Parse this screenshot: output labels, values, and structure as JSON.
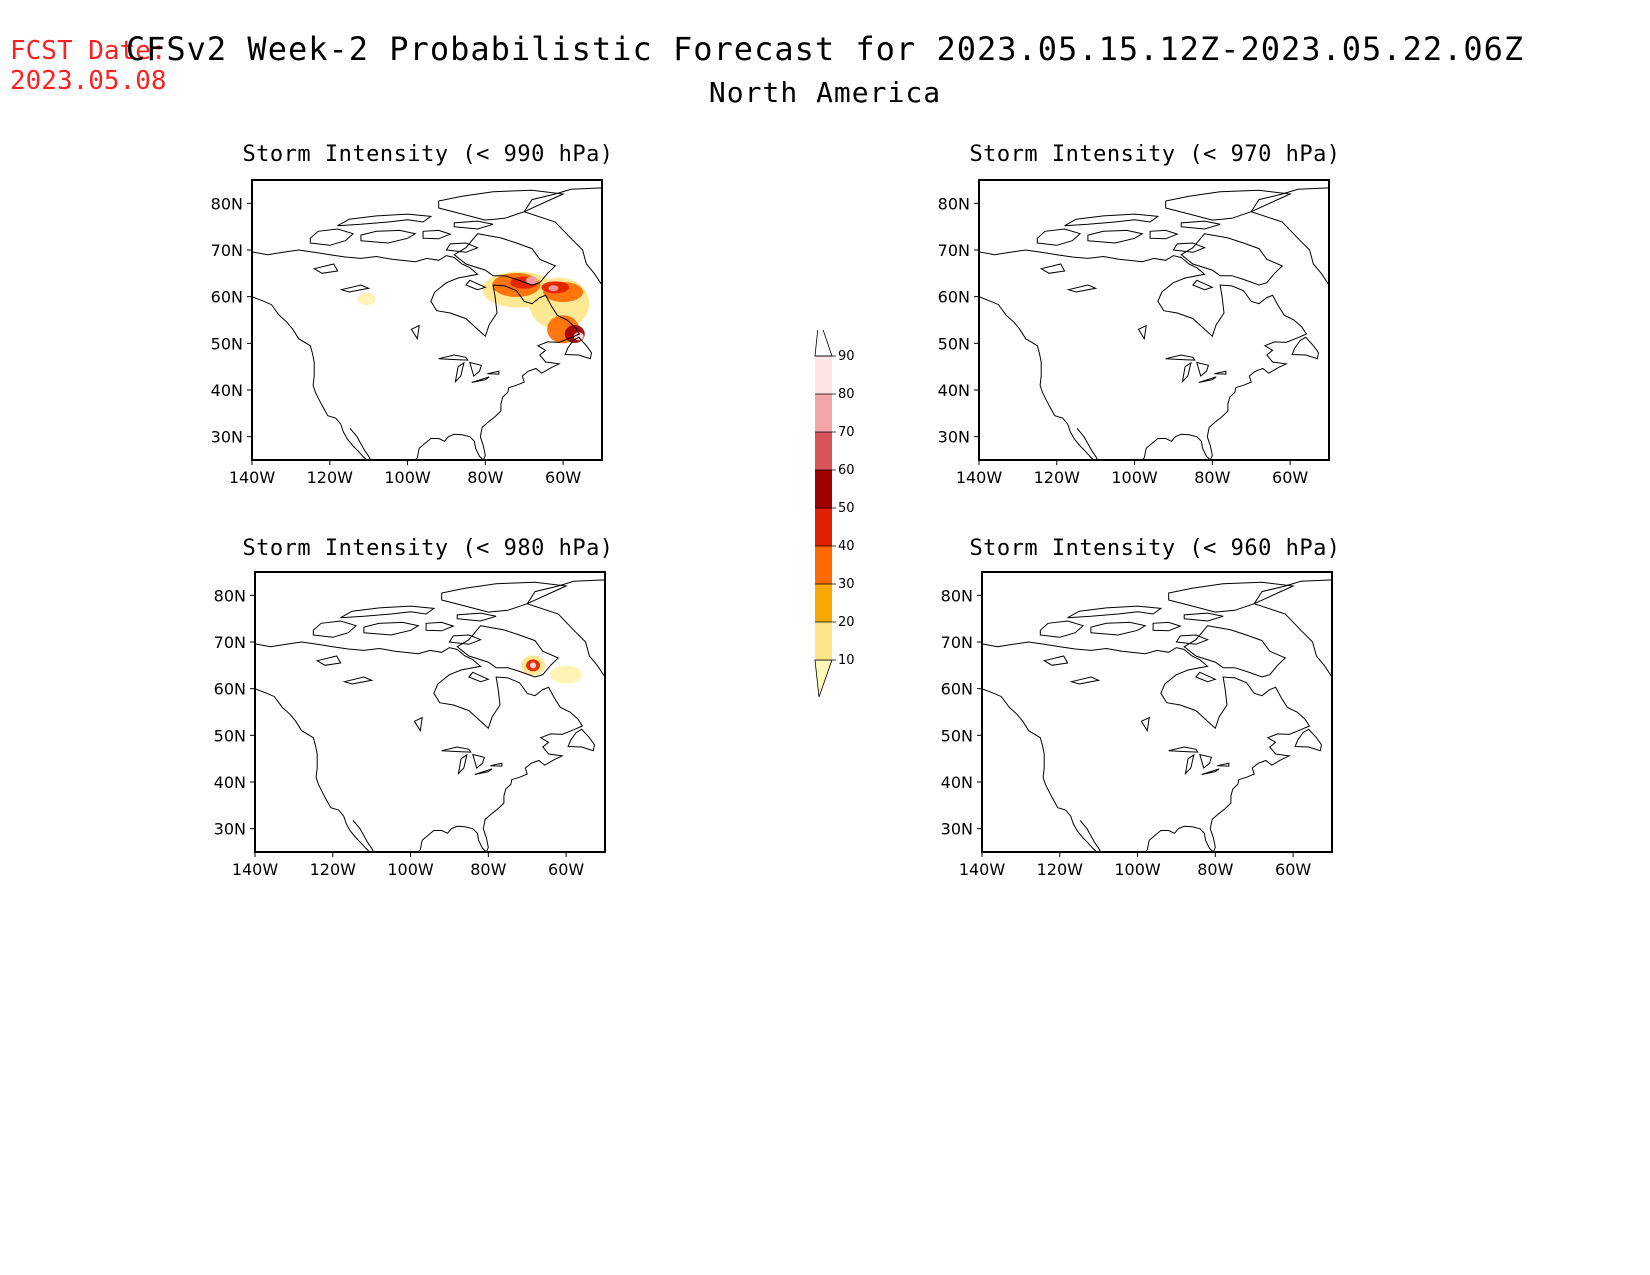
{
  "header": {
    "fcst_label": "FCST Date:",
    "fcst_date": "2023.05.08",
    "title": "CFSv2 Week-2 Probabilistic Forecast for 2023.05.15.12Z-2023.05.22.06Z",
    "subtitle": "North America"
  },
  "panels": [
    {
      "id": "p990",
      "title": "Storm Intensity (< 990 hPa)",
      "has_signal": "strong"
    },
    {
      "id": "p970",
      "title": "Storm Intensity (< 970 hPa)",
      "has_signal": "none"
    },
    {
      "id": "p980",
      "title": "Storm Intensity (< 980 hPa)",
      "has_signal": "weak"
    },
    {
      "id": "p960",
      "title": "Storm Intensity (< 960 hPa)",
      "has_signal": "none"
    }
  ],
  "axes": {
    "lat_labels": [
      "80N",
      "70N",
      "60N",
      "50N",
      "40N",
      "30N"
    ],
    "lon_labels": [
      "140W",
      "120W",
      "100W",
      "80W",
      "60W"
    ]
  },
  "colorbar": {
    "levels": [
      "10",
      "20",
      "30",
      "40",
      "50",
      "60",
      "70",
      "80",
      "90"
    ],
    "colors": [
      "#fff9b8",
      "#fde68a",
      "#f9a800",
      "#ff6a00",
      "#e02000",
      "#a00000",
      "#d9545a",
      "#f3a5a8",
      "#ffe4e6",
      "#ffffff"
    ]
  }
}
